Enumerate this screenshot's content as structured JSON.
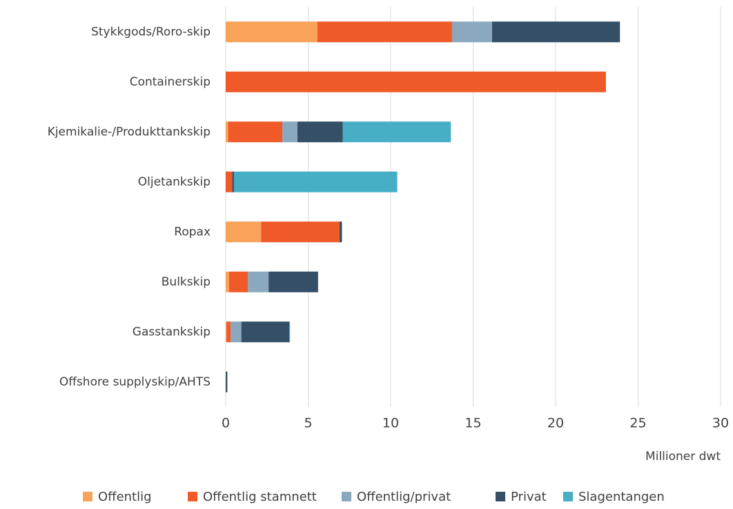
{
  "chart_data": {
    "type": "stacked_barh",
    "categories": [
      "Stykkgods/Roro-skip",
      "Containerskip",
      "Kjemikalie-/Produkttankskip",
      "Oljetankskip",
      "Ropax",
      "Bulkskip",
      "Gasstankskip",
      "Offshore supplyskip/AHTS"
    ],
    "series": [
      {
        "name": "Offentlig",
        "color": "#f9a25a",
        "values": [
          5.56,
          0,
          0.15,
          0,
          2.15,
          0.2,
          0.05,
          0
        ]
      },
      {
        "name": "Offentlig stamnett",
        "color": "#f05a28",
        "values": [
          8.16,
          23.05,
          3.28,
          0.4,
          4.75,
          1.15,
          0.25,
          0
        ]
      },
      {
        "name": "Offentlig/privat",
        "color": "#8aa8be",
        "values": [
          2.43,
          0,
          0.92,
          0,
          0,
          1.25,
          0.65,
          0
        ]
      },
      {
        "name": "Privat",
        "color": "#344f66",
        "values": [
          7.75,
          0,
          2.75,
          0.1,
          0.15,
          3.0,
          2.9,
          0.1
        ]
      },
      {
        "name": "Slagentangen",
        "color": "#47aec6",
        "values": [
          0,
          0,
          6.55,
          9.9,
          0,
          0,
          0.05,
          0
        ]
      }
    ],
    "xlabel": "Millioner dwt",
    "xlim": [
      0,
      30
    ],
    "xticks": [
      0,
      5,
      10,
      15,
      20,
      25,
      30
    ],
    "grid": true,
    "legend": "bottom"
  }
}
